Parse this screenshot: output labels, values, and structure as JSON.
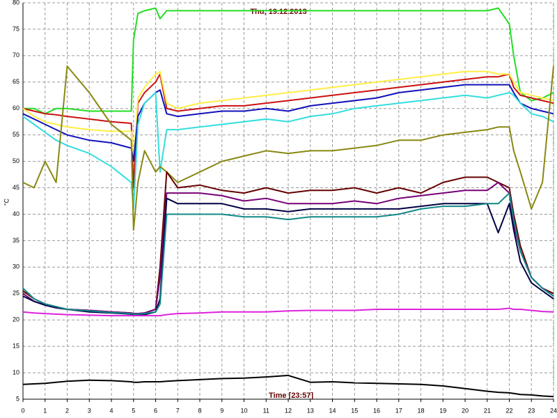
{
  "chart_data": {
    "type": "line",
    "title": "Thu, 19.12.2013",
    "x_label": "Time [23:57]",
    "y_label": "°C",
    "xlim": [
      0,
      24
    ],
    "xticks": [
      0,
      1,
      2,
      3,
      4,
      5,
      6,
      7,
      8,
      9,
      10,
      11,
      12,
      13,
      14,
      15,
      16,
      17,
      18,
      19,
      20,
      21,
      22,
      23,
      24
    ],
    "ylim": [
      5,
      80
    ],
    "yticks": [
      5,
      10,
      15,
      20,
      25,
      30,
      35,
      40,
      45,
      50,
      55,
      60,
      65,
      70,
      75,
      80
    ],
    "grid": true,
    "x": [
      0,
      0.5,
      1,
      1.5,
      2,
      3,
      4,
      4.9,
      5,
      5.2,
      5.5,
      6,
      6.2,
      6.5,
      7,
      8,
      9,
      10,
      11,
      12,
      13,
      14,
      15,
      16,
      17,
      18,
      19,
      20,
      21,
      21.5,
      22,
      22.2,
      22.5,
      23,
      23.5,
      24
    ],
    "series": [
      {
        "color": "#22dd22",
        "values": [
          60,
          60,
          59,
          60,
          60,
          59.5,
          59.5,
          59.5,
          73,
          78,
          78.5,
          79,
          77,
          78.5,
          78.5,
          78.5,
          78.5,
          78.5,
          78.5,
          78.5,
          78.5,
          78.5,
          78.5,
          78.5,
          78.5,
          78.5,
          78.5,
          78.5,
          78.5,
          79,
          76,
          70,
          63,
          61.5,
          62,
          63
        ]
      },
      {
        "color": "#cc1111",
        "values": [
          60,
          59.5,
          59,
          58.8,
          58.5,
          58,
          57.5,
          57.2,
          45,
          61,
          63,
          65,
          66.5,
          60,
          59.5,
          60,
          60.5,
          60.5,
          61,
          61.5,
          62,
          62.5,
          63,
          63.5,
          64,
          64.5,
          65,
          65.5,
          66,
          66,
          66.5,
          64,
          62.5,
          62,
          61.5,
          61
        ]
      },
      {
        "color": "#ffee44",
        "values": [
          60,
          58.5,
          57.5,
          57,
          56.5,
          56,
          55.7,
          55.7,
          50,
          62,
          64,
          66.5,
          67,
          61,
          60,
          61,
          61.5,
          62,
          62.5,
          63,
          63.5,
          64,
          64.5,
          65,
          65.5,
          66,
          66.5,
          67,
          67,
          66.5,
          66.5,
          65,
          63,
          62.5,
          62,
          61.5
        ]
      },
      {
        "color": "#1111bb",
        "values": [
          59,
          58,
          57,
          56,
          55,
          54,
          53.5,
          52.5,
          50,
          58.5,
          61,
          63,
          63.5,
          59,
          58.5,
          59,
          59.5,
          59.5,
          60,
          59.5,
          60.5,
          61,
          61.5,
          62,
          63,
          63.5,
          64,
          64.5,
          64.5,
          64.5,
          64.5,
          63,
          61,
          60,
          59.5,
          59
        ]
      },
      {
        "color": "#33dddd",
        "values": [
          58.5,
          57,
          55.5,
          54,
          53,
          51.5,
          49,
          46,
          41,
          57,
          61,
          63,
          48,
          56,
          56,
          56.5,
          57,
          57.5,
          58,
          57.5,
          58.5,
          59,
          60,
          60.5,
          61,
          61.5,
          62,
          62.5,
          62,
          62.5,
          63,
          62.5,
          61,
          59,
          58.5,
          57.5
        ]
      },
      {
        "color": "#888811",
        "values": [
          46,
          45,
          50,
          46,
          68,
          63,
          57,
          54,
          37,
          46,
          52,
          48,
          49,
          48,
          46,
          48,
          50,
          51,
          52,
          51.5,
          52,
          52,
          52.5,
          53,
          54,
          54,
          55,
          55.5,
          56,
          56.5,
          56.5,
          52,
          48,
          41,
          46,
          68
        ]
      },
      {
        "color": "#660000",
        "values": [
          25.5,
          24,
          23,
          22.5,
          22,
          21.8,
          21.5,
          21.3,
          21.2,
          21.2,
          21.3,
          22,
          30,
          48,
          45,
          45.5,
          44.5,
          44,
          45,
          44,
          44.5,
          44.5,
          45,
          44,
          45,
          44,
          46,
          47,
          47,
          46,
          45,
          40,
          34,
          28,
          26,
          25
        ]
      },
      {
        "color": "#770077",
        "values": [
          25,
          23.5,
          22.8,
          22.3,
          22,
          21.8,
          21.5,
          21.3,
          21.2,
          21.2,
          21.3,
          22,
          28,
          44,
          44,
          44,
          43.5,
          42.5,
          43,
          42,
          42,
          42,
          42.5,
          42,
          43,
          43.5,
          44,
          44.5,
          44.5,
          46,
          44,
          38,
          33,
          28,
          26,
          24.5
        ]
      },
      {
        "color": "#000044",
        "values": [
          24.5,
          23.5,
          22.8,
          22.3,
          22,
          21.5,
          21.3,
          21.1,
          21,
          21,
          21,
          21.5,
          24,
          43,
          42,
          42,
          42,
          41,
          41,
          40.5,
          41,
          41,
          41,
          41,
          41,
          41.5,
          42,
          42,
          42,
          36.5,
          42,
          37,
          31,
          27,
          25.5,
          24
        ]
      },
      {
        "color": "#118888",
        "values": [
          26,
          24,
          23,
          22.5,
          22,
          21.7,
          21.4,
          21.2,
          21.1,
          21.1,
          21.2,
          21.5,
          23,
          40,
          40,
          40,
          40,
          39.5,
          39.5,
          39,
          39.5,
          39.5,
          39.5,
          39.5,
          40,
          41,
          41.5,
          41.5,
          42,
          42,
          44,
          39,
          33,
          28,
          26,
          24.5
        ]
      },
      {
        "color": "#dd22dd",
        "values": [
          21.5,
          21.3,
          21.2,
          21.1,
          21,
          20.9,
          20.8,
          20.8,
          20.8,
          20.8,
          20.8,
          20.8,
          20.8,
          21,
          21.2,
          21.3,
          21.5,
          21.5,
          21.5,
          21.7,
          21.8,
          21.8,
          21.8,
          22,
          22,
          22,
          22,
          22,
          22,
          22,
          22.2,
          22,
          22,
          21.8,
          21.6,
          21.5
        ]
      },
      {
        "color": "#000000",
        "values": [
          7.8,
          7.9,
          8,
          8.2,
          8.4,
          8.6,
          8.5,
          8.3,
          8.2,
          8.2,
          8.3,
          8.3,
          8.3,
          8.4,
          8.5,
          8.7,
          8.9,
          9,
          9.2,
          9.5,
          8.2,
          8.3,
          8.1,
          8,
          7.9,
          7.8,
          7.5,
          7,
          6.5,
          6.3,
          6.2,
          6.1,
          5.9,
          5.8,
          5.6,
          5.5
        ]
      }
    ]
  }
}
